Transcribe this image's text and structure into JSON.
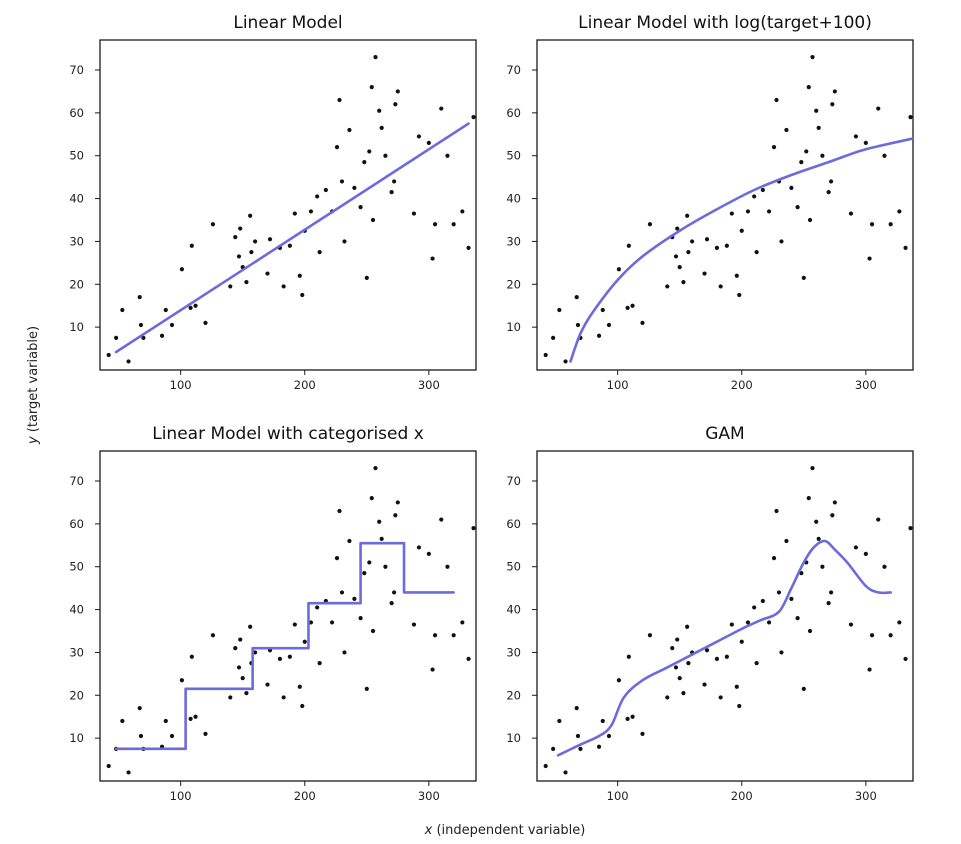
{
  "figure": {
    "xlabel_var": "x",
    "xlabel_rest": " (independent variable)",
    "ylabel_var": "y",
    "ylabel_rest": " (target variable)",
    "line_color": "#6b6bdc",
    "point_color": "#111111"
  },
  "chart_data": [
    {
      "type": "scatter",
      "title": "Linear Model",
      "xlim": [
        35,
        338
      ],
      "ylim": [
        0,
        77
      ],
      "xticks": [
        100,
        200,
        300
      ],
      "yticks": [
        10,
        20,
        30,
        40,
        50,
        60,
        70
      ],
      "points": "shared",
      "fit": {
        "kind": "linear",
        "x": [
          48,
          332
        ],
        "y": [
          4.2,
          57.5
        ]
      }
    },
    {
      "type": "scatter",
      "title": "Linear Model with log(target+100)",
      "xlim": [
        35,
        338
      ],
      "ylim": [
        0,
        77
      ],
      "xticks": [
        100,
        200,
        300
      ],
      "yticks": [
        10,
        20,
        30,
        40,
        50,
        60,
        70
      ],
      "points": "shared",
      "fit": {
        "kind": "curve",
        "x": [
          62,
          70,
          80,
          100,
          120,
          150,
          180,
          210,
          240,
          270,
          300,
          338
        ],
        "y": [
          2,
          8.5,
          13.5,
          21,
          26.5,
          32.5,
          37.5,
          42,
          45.5,
          48.5,
          51.5,
          54
        ]
      }
    },
    {
      "type": "scatter",
      "title": "Linear Model with categorised x",
      "xlim": [
        35,
        338
      ],
      "ylim": [
        0,
        77
      ],
      "xticks": [
        100,
        200,
        300
      ],
      "yticks": [
        10,
        20,
        30,
        40,
        50,
        60,
        70
      ],
      "points": "shared",
      "fit": {
        "kind": "step",
        "breaks": [
          48,
          104,
          158,
          203,
          245,
          280,
          320
        ],
        "levels": [
          7.5,
          21.5,
          31,
          41.5,
          55.5,
          44
        ]
      }
    },
    {
      "type": "scatter",
      "title": "GAM",
      "xlim": [
        35,
        338
      ],
      "ylim": [
        0,
        77
      ],
      "xticks": [
        100,
        200,
        300
      ],
      "yticks": [
        10,
        20,
        30,
        40,
        50,
        60,
        70
      ],
      "points": "shared",
      "fit": {
        "kind": "curve",
        "x": [
          52,
          70,
          85,
          95,
          105,
          120,
          140,
          160,
          180,
          200,
          215,
          230,
          240,
          250,
          258,
          267,
          275,
          285,
          300,
          310,
          320
        ],
        "y": [
          6,
          8.5,
          10.5,
          13,
          19.5,
          23.5,
          26.5,
          29.5,
          32.5,
          35.5,
          37.5,
          39.5,
          45,
          51,
          54.5,
          56,
          54,
          51,
          45.5,
          44,
          44
        ]
      }
    }
  ],
  "points": {
    "x": [
      42,
      48,
      53,
      58,
      67,
      68,
      70,
      85,
      88,
      93,
      101,
      108,
      109,
      112,
      120,
      126,
      140,
      144,
      147,
      148,
      150,
      153,
      156,
      157,
      160,
      170,
      172,
      180,
      183,
      188,
      192,
      196,
      198,
      200,
      205,
      210,
      212,
      217,
      222,
      226,
      228,
      230,
      232,
      236,
      240,
      245,
      248,
      250,
      252,
      254,
      255,
      257,
      260,
      262,
      265,
      270,
      272,
      273,
      275,
      288,
      292,
      300,
      303,
      305,
      310,
      315,
      320,
      327,
      332,
      336
    ],
    "y": [
      3.5,
      7.5,
      14,
      2,
      17,
      10.5,
      7.5,
      8,
      14,
      10.5,
      23.5,
      14.5,
      29,
      15,
      11,
      34,
      19.5,
      31,
      26.5,
      33,
      24,
      20.5,
      36,
      27.5,
      30,
      22.5,
      30.5,
      28.5,
      19.5,
      29,
      36.5,
      22,
      17.5,
      32.5,
      37,
      40.5,
      27.5,
      42,
      37,
      52,
      63,
      44,
      30,
      56,
      42.5,
      38,
      48.5,
      21.5,
      51,
      66,
      35,
      73,
      60.5,
      56.5,
      50,
      41.5,
      44,
      62,
      65,
      36.5,
      54.5,
      53,
      26,
      34,
      61,
      50,
      34,
      37,
      28.5,
      59
    ]
  }
}
